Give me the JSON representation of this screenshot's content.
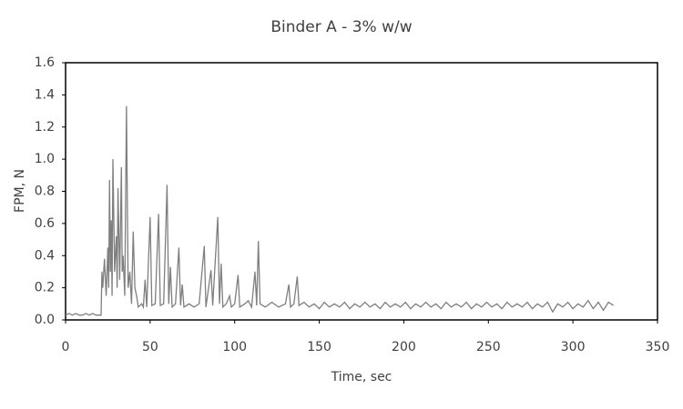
{
  "chart_data": {
    "type": "line",
    "title": "Binder A - 3% w/w",
    "x_label": "Time, sec",
    "y_label": "FPM, N",
    "x": [
      0,
      2,
      4,
      6,
      8,
      10,
      12,
      14,
      16,
      18,
      20,
      21,
      21.5,
      22,
      23,
      24,
      25,
      25.5,
      26,
      26.5,
      27,
      27.5,
      28,
      29,
      30,
      30.5,
      31,
      32,
      33,
      33.5,
      34,
      35,
      36,
      37,
      38,
      39,
      40,
      41,
      42,
      43,
      45,
      46,
      47,
      48,
      50,
      51,
      53,
      55,
      56,
      58,
      60,
      61,
      62,
      63,
      65,
      67,
      68,
      69,
      70,
      73,
      76,
      79,
      82,
      83,
      86,
      87,
      90,
      91,
      92,
      93,
      95,
      97,
      98,
      100,
      102,
      103,
      106,
      108,
      110,
      112,
      113,
      114,
      115,
      118,
      122,
      126,
      130,
      132,
      133,
      135,
      137,
      138,
      141,
      144,
      147,
      150,
      153,
      156,
      159,
      162,
      165,
      168,
      171,
      174,
      177,
      180,
      183,
      186,
      189,
      192,
      195,
      198,
      201,
      204,
      207,
      210,
      213,
      216,
      219,
      222,
      225,
      228,
      231,
      234,
      237,
      240,
      243,
      246,
      249,
      252,
      255,
      258,
      261,
      264,
      267,
      270,
      273,
      276,
      279,
      282,
      285,
      288,
      291,
      294,
      297,
      300,
      303,
      306,
      309,
      312,
      315,
      318,
      321,
      324
    ],
    "series": [
      {
        "name": "FPM",
        "color": "#7f7f7f",
        "values": [
          0.03,
          0.04,
          0.03,
          0.04,
          0.03,
          0.03,
          0.04,
          0.03,
          0.04,
          0.03,
          0.03,
          0.03,
          0.3,
          0.2,
          0.38,
          0.15,
          0.45,
          0.2,
          0.87,
          0.3,
          0.62,
          0.15,
          1.0,
          0.3,
          0.52,
          0.2,
          0.82,
          0.25,
          0.95,
          0.3,
          0.4,
          0.15,
          1.33,
          0.2,
          0.3,
          0.1,
          0.55,
          0.2,
          0.15,
          0.08,
          0.1,
          0.08,
          0.25,
          0.08,
          0.64,
          0.09,
          0.1,
          0.66,
          0.09,
          0.1,
          0.84,
          0.1,
          0.33,
          0.08,
          0.1,
          0.45,
          0.09,
          0.22,
          0.08,
          0.1,
          0.08,
          0.1,
          0.46,
          0.08,
          0.31,
          0.09,
          0.64,
          0.1,
          0.35,
          0.08,
          0.1,
          0.15,
          0.08,
          0.1,
          0.28,
          0.08,
          0.1,
          0.12,
          0.08,
          0.3,
          0.09,
          0.49,
          0.1,
          0.08,
          0.11,
          0.08,
          0.1,
          0.22,
          0.08,
          0.1,
          0.27,
          0.09,
          0.11,
          0.08,
          0.1,
          0.07,
          0.11,
          0.08,
          0.1,
          0.08,
          0.11,
          0.07,
          0.1,
          0.08,
          0.11,
          0.08,
          0.1,
          0.07,
          0.11,
          0.08,
          0.1,
          0.08,
          0.11,
          0.07,
          0.1,
          0.08,
          0.11,
          0.08,
          0.1,
          0.07,
          0.11,
          0.08,
          0.1,
          0.08,
          0.11,
          0.07,
          0.1,
          0.08,
          0.11,
          0.08,
          0.1,
          0.07,
          0.11,
          0.08,
          0.1,
          0.08,
          0.11,
          0.07,
          0.1,
          0.08,
          0.11,
          0.05,
          0.1,
          0.08,
          0.11,
          0.07,
          0.1,
          0.08,
          0.12,
          0.07,
          0.11,
          0.06,
          0.11,
          0.09
        ]
      }
    ],
    "xlim": [
      0,
      350
    ],
    "xticks": [
      0,
      50,
      100,
      150,
      200,
      250,
      300,
      350
    ],
    "ylim": [
      0,
      1.6
    ],
    "yticks": [
      {
        "value": 0,
        "label": "0.0"
      },
      0.2,
      0.4,
      0.6,
      0.8,
      {
        "value": 1,
        "label": "1.0"
      },
      1.2,
      1.4,
      1.6
    ],
    "grid": false
  }
}
